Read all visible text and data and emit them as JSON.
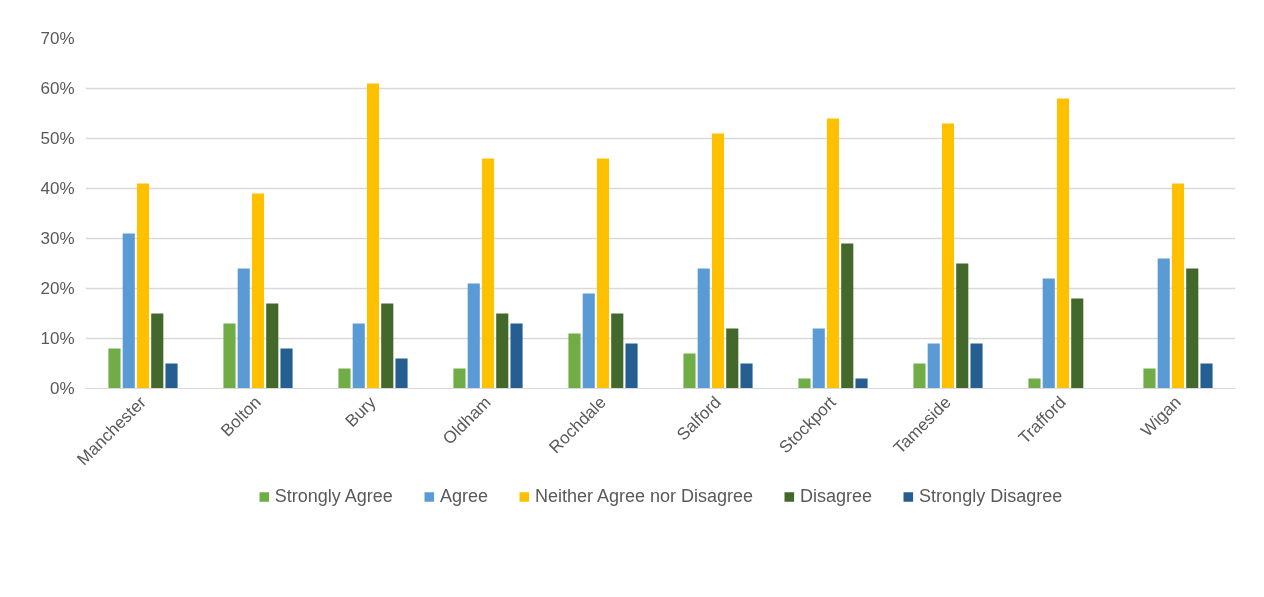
{
  "chart_data": {
    "type": "bar",
    "categories": [
      "Manchester",
      "Bolton",
      "Bury",
      "Oldham",
      "Rochdale",
      "Salford",
      "Stockport",
      "Tameside",
      "Trafford",
      "Wigan"
    ],
    "series": [
      {
        "name": "Strongly Agree",
        "color": "#70ad47",
        "values": [
          8,
          13,
          4,
          4,
          11,
          7,
          2,
          5,
          2,
          4
        ]
      },
      {
        "name": "Agree",
        "color": "#5b9bd5",
        "values": [
          31,
          24,
          13,
          21,
          19,
          24,
          12,
          9,
          22,
          26
        ]
      },
      {
        "name": "Neither Agree nor Disagree",
        "color": "#ffc000",
        "values": [
          41,
          39,
          61,
          46,
          46,
          51,
          54,
          53,
          58,
          41
        ]
      },
      {
        "name": "Disagree",
        "color": "#43682b",
        "values": [
          15,
          17,
          17,
          15,
          15,
          12,
          29,
          25,
          18,
          24
        ]
      },
      {
        "name": "Strongly Disagree",
        "color": "#255e91",
        "values": [
          5,
          8,
          6,
          13,
          9,
          5,
          2,
          9,
          0,
          5
        ]
      }
    ],
    "ylim": [
      0,
      70
    ],
    "yticks": [
      {
        "value": 0,
        "label": "0%"
      },
      {
        "value": 10,
        "label": "10%"
      },
      {
        "value": 20,
        "label": "20%"
      },
      {
        "value": 30,
        "label": "30%"
      },
      {
        "value": 40,
        "label": "40%"
      },
      {
        "value": 50,
        "label": "50%"
      },
      {
        "value": 60,
        "label": "60%"
      },
      {
        "value": 70,
        "label": "70%"
      }
    ],
    "grid": "y",
    "legend": "bottom"
  }
}
